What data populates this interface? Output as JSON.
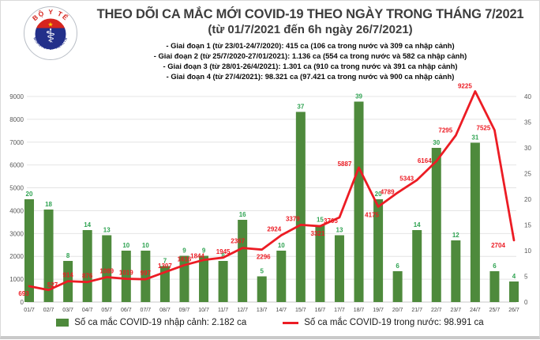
{
  "logo": {
    "top_text": "BỘ Y TẾ",
    "bottom_text": "MINISTRY OF HEALTH"
  },
  "header": {
    "title": "THEO DÕI CA MẮC MỚI COVID-19 THEO NGÀY TRONG THÁNG 7/2021",
    "subtitle": "(từ 01/7/2021 đến 6h ngày 26/7/2021)"
  },
  "phases": [
    "- Giai đoạn 1 (từ 23/01-24/7/2020): 415 ca (106 ca trong nước và 309 ca nhập cảnh)",
    "- Giai đoạn 2 (từ 25/7/2020-27/01/2021): 1.136 ca (554 ca trong nước và 582 ca nhập cảnh)",
    "- Giai đoạn 3 (từ 28/01-26/4/2021): 1.301 ca (910 ca trong nước và 391 ca nhập cảnh)",
    "- Giai đoạn 4 (từ 27/4/2021): 98.321 ca (97.421 ca trong nước và 900 ca nhập cảnh)"
  ],
  "legend": {
    "imported_label": "Số ca mắc COVID-19 nhập cảnh: 2.182 ca",
    "domestic_label": "Số ca mắc COVID-19 trong nước: 98.991 ca"
  },
  "colors": {
    "bar_fill": "#4e8a3c",
    "bar_label": "#2fa352",
    "line_stroke": "#ec1c24",
    "line_label": "#ec1c24",
    "gridline": "#e4e4e4",
    "baseline": "#c9c9c9",
    "axis_text": "#595959",
    "x_tick_text": "#444444",
    "title_text": "#3d3d3d"
  },
  "chart_data": {
    "type": "bar",
    "subtype": "bar+line combo, dual axis",
    "categories": [
      "01/7",
      "02/7",
      "03/7",
      "04/7",
      "05/7",
      "06/7",
      "07/7",
      "08/7",
      "09/7",
      "10/7",
      "11/7",
      "12/7",
      "13/7",
      "14/7",
      "15/7",
      "16/7",
      "17/7",
      "18/7",
      "19/7",
      "20/7",
      "21/7",
      "22/7",
      "23/7",
      "24/7",
      "25/7",
      "26/7"
    ],
    "series": [
      {
        "name": "Số ca mắc COVID-19 nhập cảnh",
        "render": "bar",
        "axis": "right",
        "color": "#4e8a3c",
        "values": [
          20,
          18,
          8,
          14,
          13,
          10,
          10,
          7,
          9,
          9,
          8,
          16,
          5,
          10,
          37,
          15,
          13,
          39,
          20,
          6,
          14,
          30,
          12,
          31,
          6,
          4
        ]
      },
      {
        "name": "Số ca mắc COVID-19 trong nước",
        "render": "line",
        "axis": "left",
        "color": "#ec1c24",
        "values": [
          693,
          527,
          914,
          876,
          1089,
          1019,
          997,
          1307,
          1616,
          1844,
          1945,
          2367,
          2296,
          2924,
          3379,
          3321,
          3705,
          5887,
          4175,
          4789,
          5343,
          6164,
          7295,
          9225,
          7525,
          2704
        ]
      }
    ],
    "left_axis": {
      "min": 0,
      "max": 9000,
      "step": 1000,
      "ticks": [
        "0",
        "1000",
        "2000",
        "3000",
        "4000",
        "5000",
        "6000",
        "7000",
        "8000",
        "9000"
      ]
    },
    "right_axis": {
      "min": 0,
      "max": 40,
      "step": 5,
      "ticks": [
        "0",
        "5",
        "10",
        "15",
        "20",
        "25",
        "30",
        "35",
        "40"
      ]
    },
    "grid": true,
    "data_labels": true,
    "legend_position": "bottom",
    "title": "THEO DÕI CA MẮC MỚI COVID-19 THEO NGÀY TRONG THÁNG 7/2021",
    "xlabel": "",
    "ylabel": ""
  }
}
